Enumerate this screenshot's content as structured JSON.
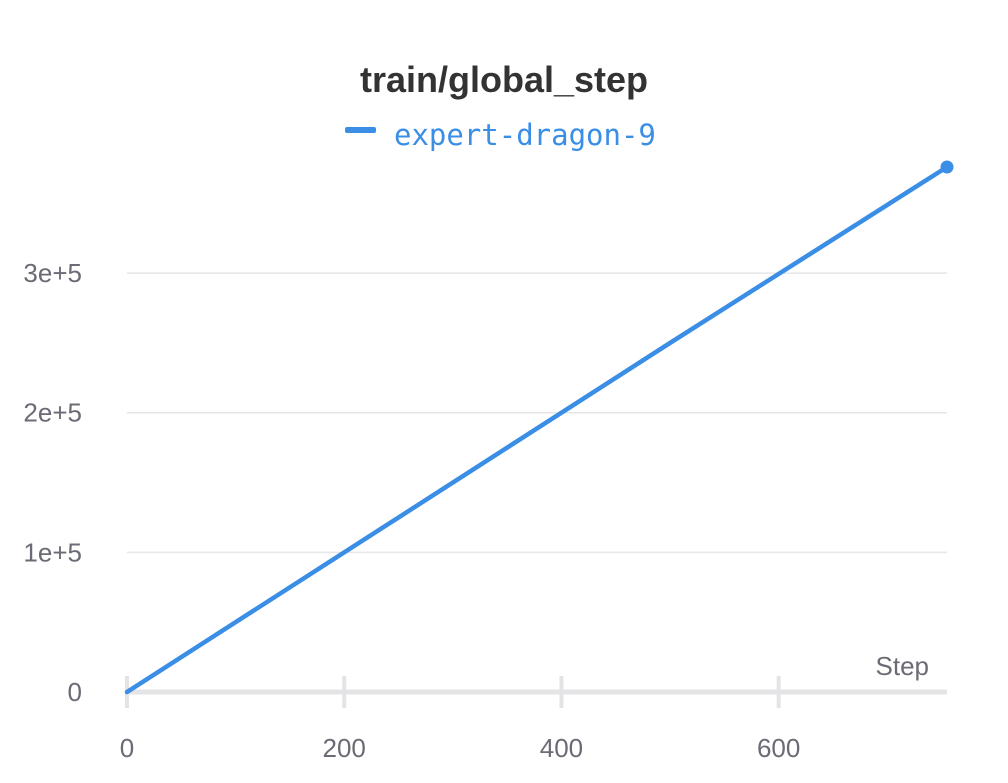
{
  "chart_data": {
    "type": "line",
    "title": "train/global_step",
    "xlabel": "Step",
    "ylabel": "",
    "xlim": [
      0,
      755
    ],
    "ylim": [
      0,
      376000
    ],
    "x_ticks": [
      0,
      200,
      400,
      600
    ],
    "x_tick_labels": [
      "0",
      "200",
      "400",
      "600"
    ],
    "y_ticks": [
      0,
      100000,
      200000,
      300000
    ],
    "y_tick_labels": [
      "0",
      "1e+5",
      "2e+5",
      "3e+5"
    ],
    "grid": true,
    "legend_position": "top-center",
    "series": [
      {
        "name": "expert-dragon-9",
        "color": "#3a8ee6",
        "x": [
          0,
          250,
          500,
          755
        ],
        "y": [
          0,
          125000,
          250000,
          376000
        ],
        "end_marker": true
      }
    ]
  }
}
